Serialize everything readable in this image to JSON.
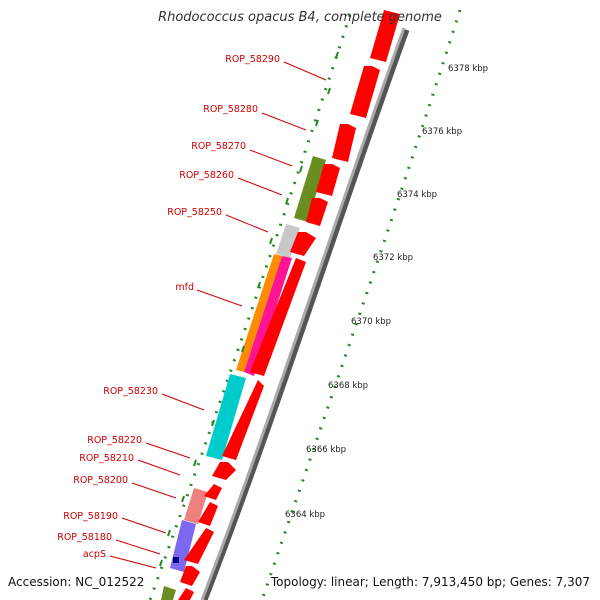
{
  "title": "Rhodococcus opacus B4, complete genome",
  "footer": {
    "accession": "Accession: NC_012522",
    "summary": "Topology: linear; Length: 7,913,450 bp; Genes: 7,307"
  },
  "scale_ticks": [
    "6378 kbp",
    "6376 kbp",
    "6374 kbp",
    "6372 kbp",
    "6370 kbp",
    "6368 kbp",
    "6366 kbp",
    "6364 kbp"
  ],
  "gene_labels": [
    "ROP_58290",
    "ROP_58280",
    "ROP_58270",
    "ROP_58260",
    "ROP_58250",
    "mfd",
    "ROP_58230",
    "ROP_58220",
    "ROP_58210",
    "ROP_58200",
    "ROP_58190",
    "ROP_58180",
    "acpS"
  ],
  "colors": {
    "cds_red": "#ff0000",
    "olive": "#6b8e23",
    "gray": "#c8c8c8",
    "orange": "#ff8c00",
    "magenta": "#ff1493",
    "cyan": "#00cccc",
    "pink": "#f08080",
    "slate_blue": "#7b68ee",
    "backbone": "#888888",
    "label_red": "#cc0000",
    "tick_green": "#228b22"
  }
}
